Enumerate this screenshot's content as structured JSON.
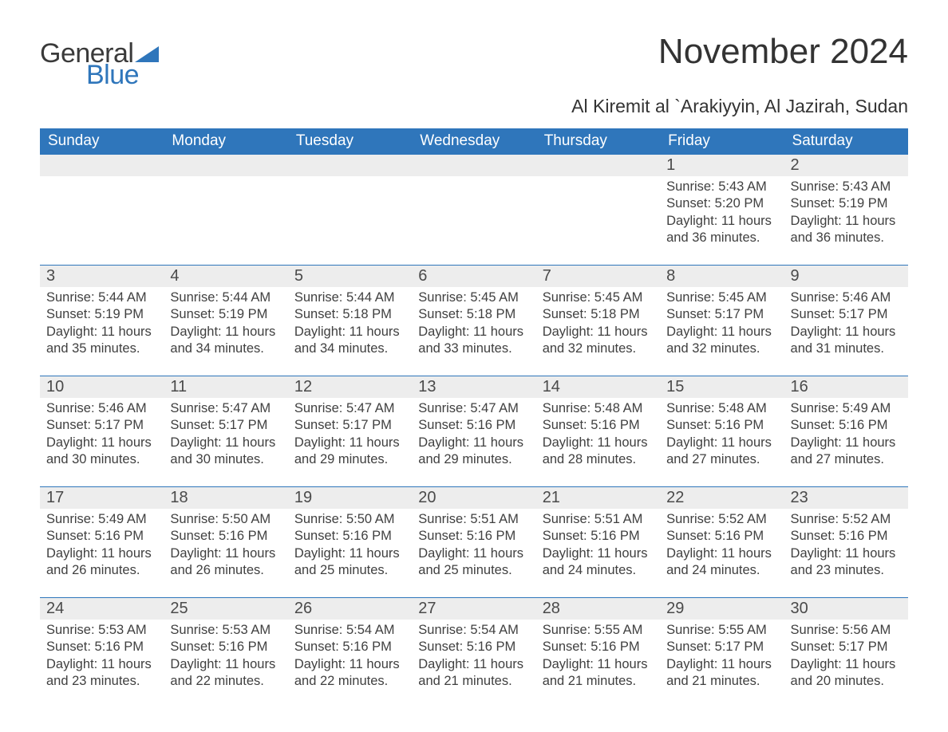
{
  "logo": {
    "text1": "General",
    "text2": "Blue"
  },
  "title": "November 2024",
  "subtitle": "Al Kiremit al `Arakiyyin, Al Jazirah, Sudan",
  "colors": {
    "header_bg": "#2f76bb",
    "header_text": "#ffffff",
    "daynum_bg": "#ededed",
    "body_text": "#404040",
    "page_bg": "#ffffff",
    "row_border": "#2f76bb"
  },
  "weekdays": [
    "Sunday",
    "Monday",
    "Tuesday",
    "Wednesday",
    "Thursday",
    "Friday",
    "Saturday"
  ],
  "weeks": [
    [
      null,
      null,
      null,
      null,
      null,
      {
        "n": "1",
        "sunrise": "Sunrise: 5:43 AM",
        "sunset": "Sunset: 5:20 PM",
        "daylight1": "Daylight: 11 hours",
        "daylight2": "and 36 minutes."
      },
      {
        "n": "2",
        "sunrise": "Sunrise: 5:43 AM",
        "sunset": "Sunset: 5:19 PM",
        "daylight1": "Daylight: 11 hours",
        "daylight2": "and 36 minutes."
      }
    ],
    [
      {
        "n": "3",
        "sunrise": "Sunrise: 5:44 AM",
        "sunset": "Sunset: 5:19 PM",
        "daylight1": "Daylight: 11 hours",
        "daylight2": "and 35 minutes."
      },
      {
        "n": "4",
        "sunrise": "Sunrise: 5:44 AM",
        "sunset": "Sunset: 5:19 PM",
        "daylight1": "Daylight: 11 hours",
        "daylight2": "and 34 minutes."
      },
      {
        "n": "5",
        "sunrise": "Sunrise: 5:44 AM",
        "sunset": "Sunset: 5:18 PM",
        "daylight1": "Daylight: 11 hours",
        "daylight2": "and 34 minutes."
      },
      {
        "n": "6",
        "sunrise": "Sunrise: 5:45 AM",
        "sunset": "Sunset: 5:18 PM",
        "daylight1": "Daylight: 11 hours",
        "daylight2": "and 33 minutes."
      },
      {
        "n": "7",
        "sunrise": "Sunrise: 5:45 AM",
        "sunset": "Sunset: 5:18 PM",
        "daylight1": "Daylight: 11 hours",
        "daylight2": "and 32 minutes."
      },
      {
        "n": "8",
        "sunrise": "Sunrise: 5:45 AM",
        "sunset": "Sunset: 5:17 PM",
        "daylight1": "Daylight: 11 hours",
        "daylight2": "and 32 minutes."
      },
      {
        "n": "9",
        "sunrise": "Sunrise: 5:46 AM",
        "sunset": "Sunset: 5:17 PM",
        "daylight1": "Daylight: 11 hours",
        "daylight2": "and 31 minutes."
      }
    ],
    [
      {
        "n": "10",
        "sunrise": "Sunrise: 5:46 AM",
        "sunset": "Sunset: 5:17 PM",
        "daylight1": "Daylight: 11 hours",
        "daylight2": "and 30 minutes."
      },
      {
        "n": "11",
        "sunrise": "Sunrise: 5:47 AM",
        "sunset": "Sunset: 5:17 PM",
        "daylight1": "Daylight: 11 hours",
        "daylight2": "and 30 minutes."
      },
      {
        "n": "12",
        "sunrise": "Sunrise: 5:47 AM",
        "sunset": "Sunset: 5:17 PM",
        "daylight1": "Daylight: 11 hours",
        "daylight2": "and 29 minutes."
      },
      {
        "n": "13",
        "sunrise": "Sunrise: 5:47 AM",
        "sunset": "Sunset: 5:16 PM",
        "daylight1": "Daylight: 11 hours",
        "daylight2": "and 29 minutes."
      },
      {
        "n": "14",
        "sunrise": "Sunrise: 5:48 AM",
        "sunset": "Sunset: 5:16 PM",
        "daylight1": "Daylight: 11 hours",
        "daylight2": "and 28 minutes."
      },
      {
        "n": "15",
        "sunrise": "Sunrise: 5:48 AM",
        "sunset": "Sunset: 5:16 PM",
        "daylight1": "Daylight: 11 hours",
        "daylight2": "and 27 minutes."
      },
      {
        "n": "16",
        "sunrise": "Sunrise: 5:49 AM",
        "sunset": "Sunset: 5:16 PM",
        "daylight1": "Daylight: 11 hours",
        "daylight2": "and 27 minutes."
      }
    ],
    [
      {
        "n": "17",
        "sunrise": "Sunrise: 5:49 AM",
        "sunset": "Sunset: 5:16 PM",
        "daylight1": "Daylight: 11 hours",
        "daylight2": "and 26 minutes."
      },
      {
        "n": "18",
        "sunrise": "Sunrise: 5:50 AM",
        "sunset": "Sunset: 5:16 PM",
        "daylight1": "Daylight: 11 hours",
        "daylight2": "and 26 minutes."
      },
      {
        "n": "19",
        "sunrise": "Sunrise: 5:50 AM",
        "sunset": "Sunset: 5:16 PM",
        "daylight1": "Daylight: 11 hours",
        "daylight2": "and 25 minutes."
      },
      {
        "n": "20",
        "sunrise": "Sunrise: 5:51 AM",
        "sunset": "Sunset: 5:16 PM",
        "daylight1": "Daylight: 11 hours",
        "daylight2": "and 25 minutes."
      },
      {
        "n": "21",
        "sunrise": "Sunrise: 5:51 AM",
        "sunset": "Sunset: 5:16 PM",
        "daylight1": "Daylight: 11 hours",
        "daylight2": "and 24 minutes."
      },
      {
        "n": "22",
        "sunrise": "Sunrise: 5:52 AM",
        "sunset": "Sunset: 5:16 PM",
        "daylight1": "Daylight: 11 hours",
        "daylight2": "and 24 minutes."
      },
      {
        "n": "23",
        "sunrise": "Sunrise: 5:52 AM",
        "sunset": "Sunset: 5:16 PM",
        "daylight1": "Daylight: 11 hours",
        "daylight2": "and 23 minutes."
      }
    ],
    [
      {
        "n": "24",
        "sunrise": "Sunrise: 5:53 AM",
        "sunset": "Sunset: 5:16 PM",
        "daylight1": "Daylight: 11 hours",
        "daylight2": "and 23 minutes."
      },
      {
        "n": "25",
        "sunrise": "Sunrise: 5:53 AM",
        "sunset": "Sunset: 5:16 PM",
        "daylight1": "Daylight: 11 hours",
        "daylight2": "and 22 minutes."
      },
      {
        "n": "26",
        "sunrise": "Sunrise: 5:54 AM",
        "sunset": "Sunset: 5:16 PM",
        "daylight1": "Daylight: 11 hours",
        "daylight2": "and 22 minutes."
      },
      {
        "n": "27",
        "sunrise": "Sunrise: 5:54 AM",
        "sunset": "Sunset: 5:16 PM",
        "daylight1": "Daylight: 11 hours",
        "daylight2": "and 21 minutes."
      },
      {
        "n": "28",
        "sunrise": "Sunrise: 5:55 AM",
        "sunset": "Sunset: 5:16 PM",
        "daylight1": "Daylight: 11 hours",
        "daylight2": "and 21 minutes."
      },
      {
        "n": "29",
        "sunrise": "Sunrise: 5:55 AM",
        "sunset": "Sunset: 5:17 PM",
        "daylight1": "Daylight: 11 hours",
        "daylight2": "and 21 minutes."
      },
      {
        "n": "30",
        "sunrise": "Sunrise: 5:56 AM",
        "sunset": "Sunset: 5:17 PM",
        "daylight1": "Daylight: 11 hours",
        "daylight2": "and 20 minutes."
      }
    ]
  ]
}
